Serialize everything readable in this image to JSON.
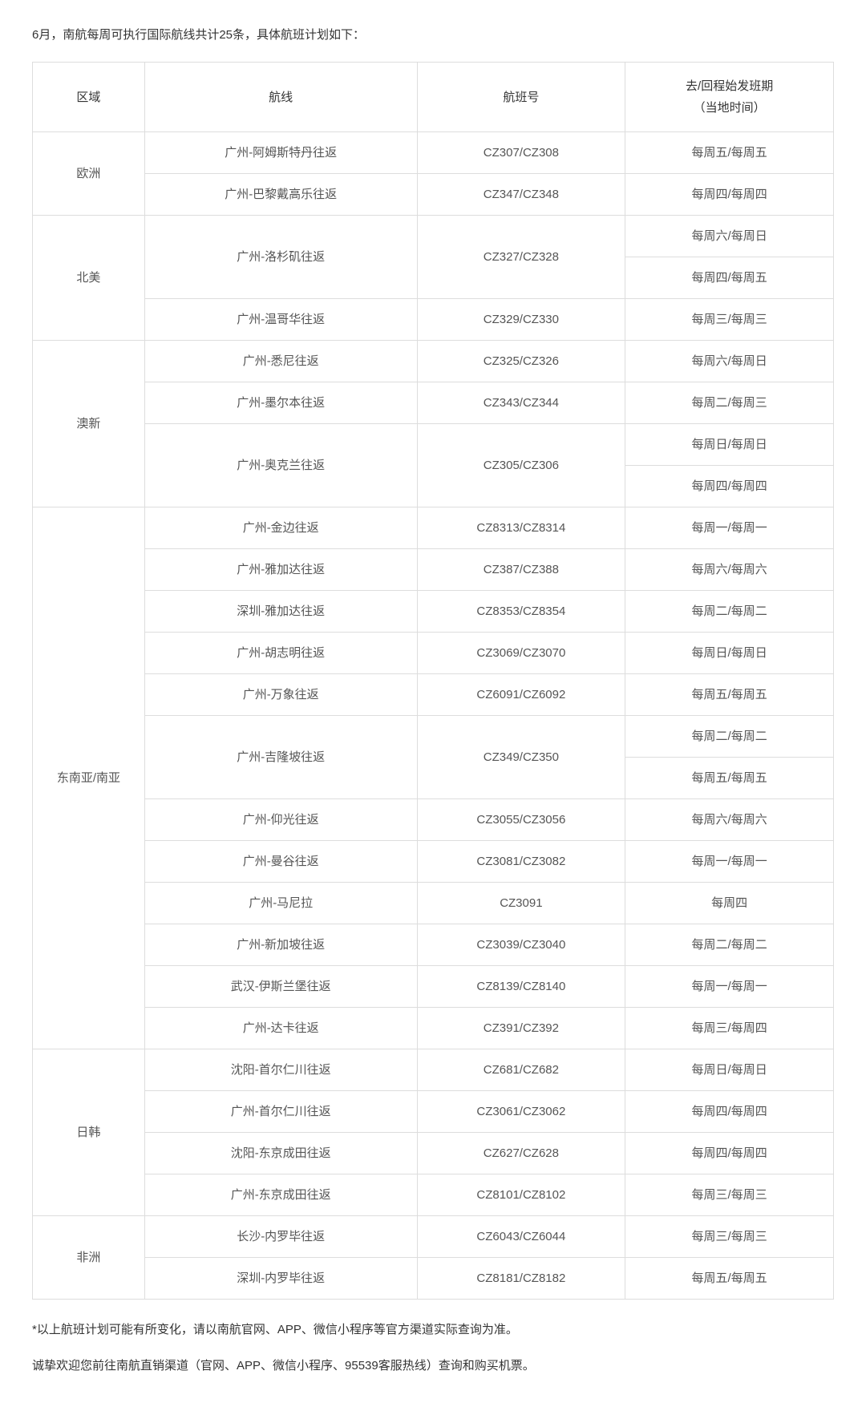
{
  "intro": "6月，南航每周可执行国际航线共计25条，具体航班计划如下：",
  "headers": {
    "region": "区域",
    "route": "航线",
    "flight": "航班号",
    "schedule_line1": "去/回程始发班期",
    "schedule_line2": "（当地时间）"
  },
  "colors": {
    "border": "#dddddd",
    "text": "#555555",
    "heading_text": "#333333",
    "background": "#ffffff"
  },
  "column_widths_pct": [
    14,
    34,
    26,
    26
  ],
  "regions": [
    {
      "name": "欧洲",
      "rows": [
        {
          "route": "广州-阿姆斯特丹往返",
          "flight": "CZ307/CZ308",
          "schedule": "每周五/每周五"
        },
        {
          "route": "广州-巴黎戴高乐往返",
          "flight": "CZ347/CZ348",
          "schedule": "每周四/每周四"
        }
      ]
    },
    {
      "name": "北美",
      "rows": [
        {
          "route": "广州-洛杉矶往返",
          "flight": "CZ327/CZ328",
          "schedule": "每周六/每周日",
          "route_rowspan": 2,
          "flight_rowspan": 2
        },
        {
          "schedule": "每周四/每周五"
        },
        {
          "route": "广州-温哥华往返",
          "flight": "CZ329/CZ330",
          "schedule": "每周三/每周三"
        }
      ]
    },
    {
      "name": "澳新",
      "rows": [
        {
          "route": "广州-悉尼往返",
          "flight": "CZ325/CZ326",
          "schedule": "每周六/每周日"
        },
        {
          "route": "广州-墨尔本往返",
          "flight": "CZ343/CZ344",
          "schedule": "每周二/每周三"
        },
        {
          "route": "广州-奥克兰往返",
          "flight": "CZ305/CZ306",
          "schedule": "每周日/每周日",
          "route_rowspan": 2,
          "flight_rowspan": 2
        },
        {
          "schedule": "每周四/每周四"
        }
      ]
    },
    {
      "name": "东南亚/南亚",
      "rows": [
        {
          "route": "广州-金边往返",
          "flight": "CZ8313/CZ8314",
          "schedule": "每周一/每周一"
        },
        {
          "route": "广州-雅加达往返",
          "flight": "CZ387/CZ388",
          "schedule": "每周六/每周六"
        },
        {
          "route": "深圳-雅加达往返",
          "flight": "CZ8353/CZ8354",
          "schedule": "每周二/每周二"
        },
        {
          "route": "广州-胡志明往返",
          "flight": "CZ3069/CZ3070",
          "schedule": "每周日/每周日"
        },
        {
          "route": "广州-万象往返",
          "flight": "CZ6091/CZ6092",
          "schedule": "每周五/每周五"
        },
        {
          "route": "广州-吉隆坡往返",
          "flight": "CZ349/CZ350",
          "schedule": "每周二/每周二",
          "route_rowspan": 2,
          "flight_rowspan": 2
        },
        {
          "schedule": "每周五/每周五"
        },
        {
          "route": "广州-仰光往返",
          "flight": "CZ3055/CZ3056",
          "schedule": "每周六/每周六"
        },
        {
          "route": "广州-曼谷往返",
          "flight": "CZ3081/CZ3082",
          "schedule": "每周一/每周一"
        },
        {
          "route": "广州-马尼拉",
          "flight": "CZ3091",
          "schedule": "每周四"
        },
        {
          "route": "广州-新加坡往返",
          "flight": "CZ3039/CZ3040",
          "schedule": "每周二/每周二"
        },
        {
          "route": "武汉-伊斯兰堡往返",
          "flight": "CZ8139/CZ8140",
          "schedule": "每周一/每周一"
        },
        {
          "route": "广州-达卡往返",
          "flight": "CZ391/CZ392",
          "schedule": "每周三/每周四"
        }
      ]
    },
    {
      "name": "日韩",
      "rows": [
        {
          "route": "沈阳-首尔仁川往返",
          "flight": "CZ681/CZ682",
          "schedule": "每周日/每周日"
        },
        {
          "route": "广州-首尔仁川往返",
          "flight": "CZ3061/CZ3062",
          "schedule": "每周四/每周四"
        },
        {
          "route": "沈阳-东京成田往返",
          "flight": "CZ627/CZ628",
          "schedule": "每周四/每周四"
        },
        {
          "route": "广州-东京成田往返",
          "flight": "CZ8101/CZ8102",
          "schedule": "每周三/每周三"
        }
      ]
    },
    {
      "name": "非洲",
      "rows": [
        {
          "route": "长沙-内罗毕往返",
          "flight": "CZ6043/CZ6044",
          "schedule": "每周三/每周三"
        },
        {
          "route": "深圳-内罗毕往返",
          "flight": "CZ8181/CZ8182",
          "schedule": "每周五/每周五"
        }
      ]
    }
  ],
  "footnotes": [
    "*以上航班计划可能有所变化，请以南航官网、APP、微信小程序等官方渠道实际查询为准。",
    "诚挚欢迎您前往南航直销渠道（官网、APP、微信小程序、95539客服热线）查询和购买机票。"
  ]
}
